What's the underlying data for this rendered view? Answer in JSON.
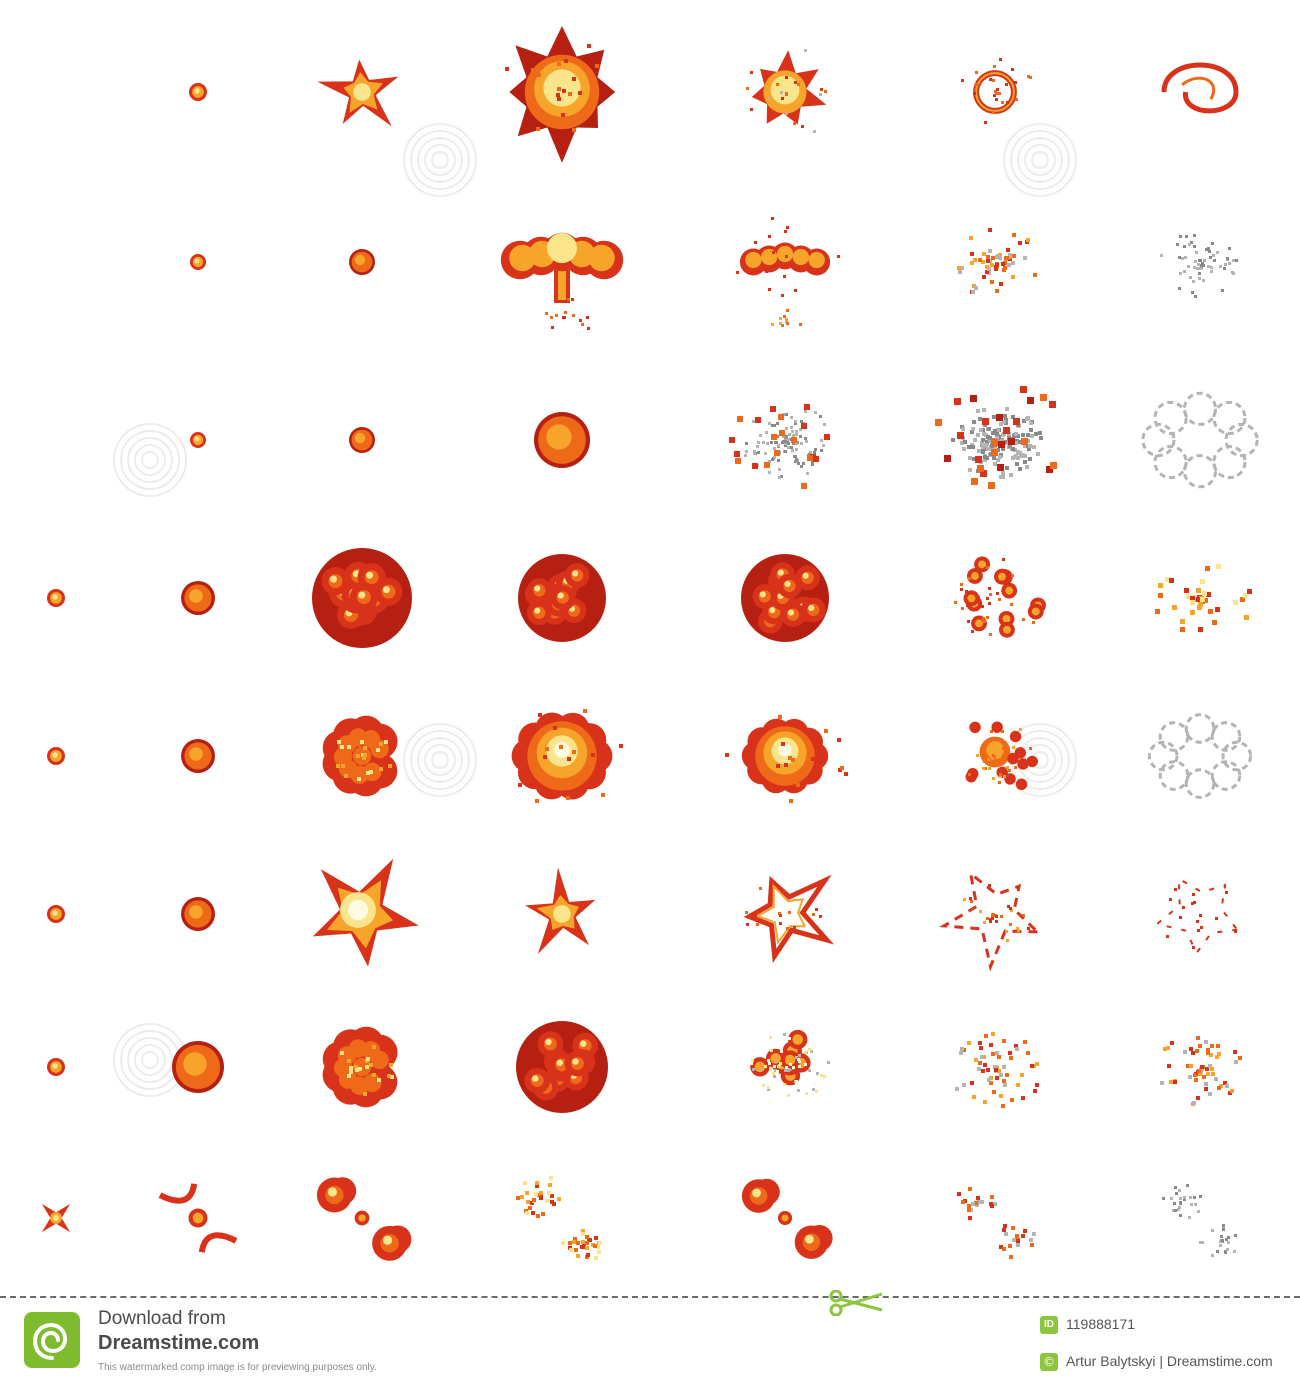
{
  "sprite_sheet": {
    "colors": {
      "dark_red": "#b52012",
      "red": "#d8321a",
      "orange": "#ee6a18",
      "amber": "#f6a52a",
      "yellow": "#fbe58c",
      "core": "#fffbe0",
      "smoke": "#b4b4b4",
      "smoke_dark": "#8a8a8a"
    },
    "rows": [
      {
        "name": "row-1-star-burst",
        "frames": [
          "",
          "",
          "dot",
          "star",
          "big-burst",
          "burst-fading",
          "ring",
          "swirl-remnant"
        ]
      },
      {
        "name": "row-2-mushroom",
        "frames": [
          "",
          "",
          "dot",
          "ball",
          "mushroom",
          "mushroom-fading",
          "mushroom-debris",
          "gray-debris"
        ]
      },
      {
        "name": "row-3-smoke-burst",
        "frames": [
          "",
          "",
          "dot",
          "ball",
          "fireball",
          "smoke-scatter",
          "smoke-cloud",
          "smoke-outline"
        ]
      },
      {
        "name": "row-4-cluster",
        "frames": [
          "",
          "dot",
          "ball",
          "cluster-large",
          "cluster",
          "cluster",
          "cluster-breaking",
          "sparks"
        ]
      },
      {
        "name": "row-5-cloud-glow",
        "frames": [
          "",
          "dot",
          "ball",
          "cloud",
          "glow-burst",
          "glow-burst-ring",
          "cloud-fading",
          "smoke-outline"
        ]
      },
      {
        "name": "row-6-star-flash",
        "frames": [
          "",
          "dot",
          "ball",
          "star-flash",
          "star",
          "star-outline",
          "star-shards",
          "star-fragments"
        ]
      },
      {
        "name": "row-7-fire-cloud",
        "frames": [
          "",
          "dot",
          "fireball",
          "cloud",
          "cluster",
          "cluster-fading",
          "debris",
          "debris"
        ]
      },
      {
        "name": "row-8-twin-blast",
        "frames": [
          "",
          "spark",
          "twin-arcs",
          "twin-clouds",
          "twin-debris",
          "twin-clouds",
          "twin-fragments",
          "gray-fragments"
        ]
      }
    ]
  },
  "watermark": {
    "text": "dreamstime.com"
  },
  "footer": {
    "download_from": "Download from",
    "brand": "Dreamstime.com",
    "disclaimer": "This watermarked comp image is for previewing purposes only.",
    "id_label": "ID",
    "id_value": "119888171",
    "copyright_symbol": "©",
    "credit": "Artur Balytskyi | Dreamstime.com",
    "brand_color": "#7fbb2e",
    "scissors_color": "#8cc63f"
  }
}
